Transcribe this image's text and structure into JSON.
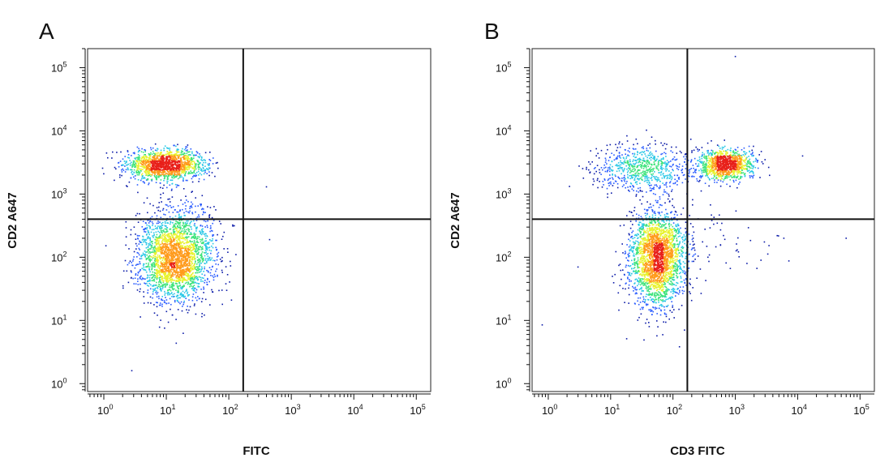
{
  "chart_data": [
    {
      "type": "scatter",
      "panel_label": "A",
      "title": "",
      "xlabel": "FITC",
      "ylabel": "CD2 A647",
      "xscale": "log",
      "yscale": "log",
      "xlim": [
        0.55,
        170000
      ],
      "ylim": [
        0.75,
        200000
      ],
      "xticks": [
        "10^0",
        "10^1",
        "10^2",
        "10^3",
        "10^4",
        "10^5"
      ],
      "yticks": [
        "10^0",
        "10^1",
        "10^2",
        "10^3",
        "10^4",
        "10^5"
      ],
      "quadrant_gates": {
        "x": 170,
        "y": 400
      },
      "grid": false,
      "legend": "none",
      "density_colors": [
        "#0a1aa8",
        "#2a5cff",
        "#29c7e6",
        "#3ce37a",
        "#e8f22e",
        "#ff9a1a",
        "#e8201a"
      ],
      "populations": [
        {
          "name": "",
          "center": [
            10,
            2900
          ],
          "spread_decades": [
            0.32,
            0.12
          ],
          "points": 1500
        },
        {
          "name": "",
          "center": [
            14,
            100
          ],
          "spread_decades": [
            0.3,
            0.35
          ],
          "points": 2600
        }
      ],
      "outliers": [
        [
          400,
          1300
        ],
        [
          450,
          190
        ],
        [
          130,
          110
        ],
        [
          2.8,
          1.6
        ]
      ]
    },
    {
      "type": "scatter",
      "panel_label": "B",
      "title": "",
      "xlabel": "CD3 FITC",
      "ylabel": "CD2 A647",
      "xscale": "log",
      "yscale": "log",
      "xlim": [
        0.55,
        170000
      ],
      "ylim": [
        0.75,
        200000
      ],
      "xticks": [
        "10^0",
        "10^1",
        "10^2",
        "10^3",
        "10^4",
        "10^5"
      ],
      "yticks": [
        "10^0",
        "10^1",
        "10^2",
        "10^3",
        "10^4",
        "10^5"
      ],
      "quadrant_gates": {
        "x": 170,
        "y": 400
      },
      "grid": false,
      "legend": "none",
      "density_colors": [
        "#0a1aa8",
        "#2a5cff",
        "#29c7e6",
        "#3ce37a",
        "#e8f22e",
        "#ff9a1a",
        "#e8201a"
      ],
      "populations": [
        {
          "name": "",
          "center": [
            700,
            2900
          ],
          "spread_decades": [
            0.22,
            0.12
          ],
          "points": 1100
        },
        {
          "name": "",
          "center": [
            30,
            2500
          ],
          "spread_decades": [
            0.38,
            0.18
          ],
          "points": 700
        },
        {
          "name": "",
          "center": [
            55,
            100
          ],
          "spread_decades": [
            0.22,
            0.38
          ],
          "points": 2400
        },
        {
          "name": "",
          "center": [
            300,
            150
          ],
          "spread_decades": [
            0.55,
            0.3
          ],
          "points": 90
        }
      ],
      "outliers": [
        [
          1000,
          150000
        ],
        [
          6000,
          200
        ],
        [
          60000,
          200
        ],
        [
          3000,
          3500
        ],
        [
          0.8,
          8.5
        ],
        [
          3,
          70
        ],
        [
          12000,
          4000
        ]
      ]
    }
  ]
}
